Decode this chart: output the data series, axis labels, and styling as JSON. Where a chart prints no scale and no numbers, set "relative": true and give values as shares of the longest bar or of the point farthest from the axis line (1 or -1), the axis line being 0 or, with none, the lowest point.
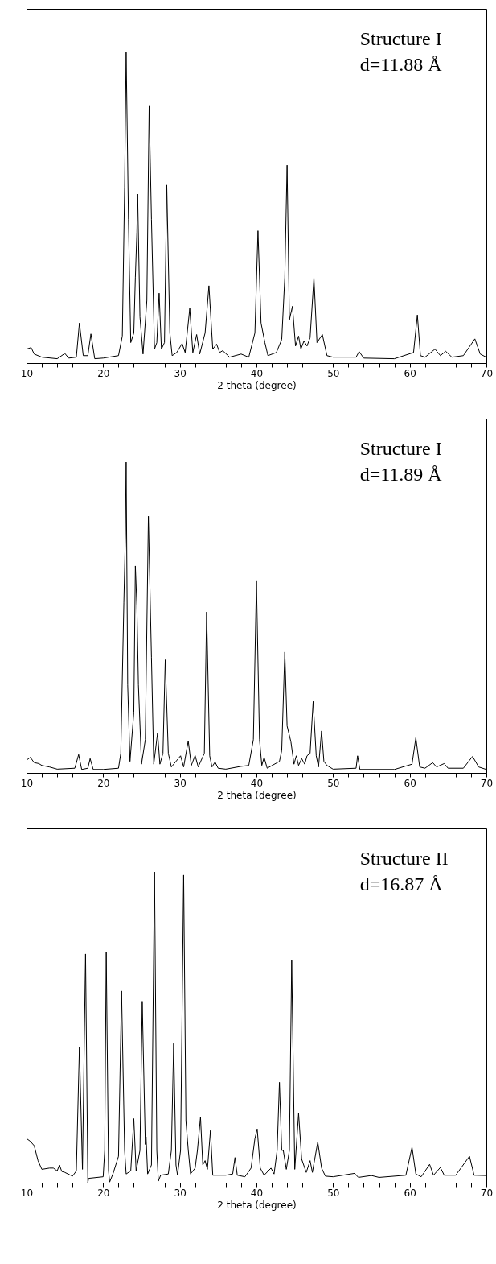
{
  "chart_data": [
    {
      "type": "line",
      "relative": true,
      "xlabel": "2 theta (degree)",
      "xlim": [
        10,
        70
      ],
      "xticks": [
        10,
        {
          "value": 12,
          "label": null
        },
        {
          "value": 14,
          "label": null
        },
        {
          "value": 16,
          "label": null
        },
        {
          "value": 18,
          "label": null
        },
        20,
        {
          "value": 22,
          "label": null
        },
        {
          "value": 24,
          "label": null
        },
        {
          "value": 26,
          "label": null
        },
        {
          "value": 28,
          "label": null
        },
        30,
        {
          "value": 32,
          "label": null
        },
        {
          "value": 34,
          "label": null
        },
        {
          "value": 36,
          "label": null
        },
        {
          "value": 38,
          "label": null
        },
        40,
        {
          "value": 42,
          "label": null
        },
        {
          "value": 44,
          "label": null
        },
        {
          "value": 46,
          "label": null
        },
        {
          "value": 48,
          "label": null
        },
        50,
        {
          "value": 52,
          "label": null
        },
        {
          "value": 54,
          "label": null
        },
        {
          "value": 56,
          "label": null
        },
        {
          "value": 58,
          "label": null
        },
        60,
        {
          "value": 62,
          "label": null
        },
        {
          "value": 64,
          "label": null
        },
        {
          "value": 66,
          "label": null
        },
        {
          "value": 68,
          "label": null
        },
        70
      ],
      "annotations": [
        "Structure I",
        "d=11.88 Å"
      ],
      "series": [
        {
          "color": "#000000",
          "x": [
            10,
            10.6,
            11,
            12,
            14,
            15,
            15.5,
            16.5,
            16.9,
            17.4,
            18,
            18.4,
            18.9,
            20,
            22,
            22.5,
            22.8,
            23.0,
            23.3,
            23.6,
            24.0,
            24.2,
            24.4,
            24.5,
            24.8,
            25.2,
            25.7,
            26.0,
            26.3,
            26.7,
            27.0,
            27.3,
            27.6,
            28.0,
            28.3,
            28.7,
            29.0,
            29.6,
            30.3,
            30.7,
            31.3,
            31.7,
            32.2,
            32.6,
            33.3,
            33.8,
            34.3,
            34.8,
            35.2,
            35.6,
            36.5,
            38,
            39,
            39.8,
            40.2,
            40.6,
            41.1,
            41.5,
            42.6,
            43.3,
            43.7,
            44.0,
            44.3,
            44.7,
            45.1,
            45.5,
            45.8,
            46.2,
            46.6,
            47.0,
            47.5,
            47.9,
            48.6,
            49.2,
            50,
            53,
            53.4,
            54,
            58,
            60.5,
            61.0,
            61.4,
            62,
            63.3,
            64,
            64.7,
            65.5,
            67,
            68.5,
            69.2,
            70
          ],
          "values": [
            0.045,
            0.05,
            0.029,
            0.019,
            0.014,
            0.031,
            0.016,
            0.019,
            0.129,
            0.024,
            0.024,
            0.094,
            0.014,
            0.016,
            0.024,
            0.087,
            0.567,
            1,
            0.463,
            0.066,
            0.097,
            0.275,
            0.421,
            0.544,
            0.149,
            0.029,
            0.202,
            0.827,
            0.463,
            0.045,
            0.066,
            0.225,
            0.045,
            0.066,
            0.573,
            0.097,
            0.024,
            0.034,
            0.063,
            0.034,
            0.176,
            0.034,
            0.092,
            0.029,
            0.097,
            0.249,
            0.045,
            0.061,
            0.034,
            0.04,
            0.019,
            0.029,
            0.019,
            0.097,
            0.426,
            0.129,
            0.066,
            0.024,
            0.034,
            0.076,
            0.275,
            0.637,
            0.139,
            0.183,
            0.055,
            0.087,
            0.045,
            0.071,
            0.055,
            0.082,
            0.275,
            0.066,
            0.092,
            0.024,
            0.019,
            0.019,
            0.037,
            0.016,
            0.014,
            0.034,
            0.155,
            0.024,
            0.019,
            0.045,
            0.024,
            0.038,
            0.019,
            0.024,
            0.078,
            0.029,
            0.019
          ]
        }
      ]
    },
    {
      "type": "line",
      "relative": true,
      "xlabel": "2 theta (degree)",
      "xlim": [
        10,
        70
      ],
      "xticks": [
        10,
        {
          "value": 12,
          "label": null
        },
        {
          "value": 14,
          "label": null
        },
        {
          "value": 16,
          "label": null
        },
        {
          "value": 18,
          "label": null
        },
        20,
        {
          "value": 22,
          "label": null
        },
        {
          "value": 24,
          "label": null
        },
        {
          "value": 26,
          "label": null
        },
        {
          "value": 28,
          "label": null
        },
        30,
        {
          "value": 32,
          "label": null
        },
        {
          "value": 34,
          "label": null
        },
        {
          "value": 36,
          "label": null
        },
        {
          "value": 38,
          "label": null
        },
        40,
        {
          "value": 42,
          "label": null
        },
        {
          "value": 44,
          "label": null
        },
        {
          "value": 46,
          "label": null
        },
        {
          "value": 48,
          "label": null
        },
        50,
        {
          "value": 52,
          "label": null
        },
        {
          "value": 54,
          "label": null
        },
        {
          "value": 56,
          "label": null
        },
        {
          "value": 58,
          "label": null
        },
        60,
        {
          "value": 62,
          "label": null
        },
        {
          "value": 64,
          "label": null
        },
        {
          "value": 66,
          "label": null
        },
        {
          "value": 68,
          "label": null
        },
        70
      ],
      "annotations": [
        "Structure I",
        "d=11.89 Å"
      ],
      "series": [
        {
          "color": "#000000",
          "x": [
            10,
            10.5,
            11,
            11.6,
            12,
            13,
            14,
            16.3,
            16.8,
            17.2,
            18.0,
            18.3,
            18.7,
            20,
            22,
            22.3,
            22.7,
            22.9,
            23.0,
            23.2,
            23.5,
            24.0,
            24.2,
            24.4,
            24.6,
            25.0,
            25.5,
            25.9,
            26.3,
            26.6,
            27.1,
            27.4,
            27.8,
            28.1,
            28.5,
            28.9,
            30.1,
            30.5,
            31.1,
            31.5,
            32.0,
            32.4,
            33.2,
            33.5,
            33.9,
            34.2,
            34.6,
            35,
            36,
            38,
            39,
            39.6,
            40.0,
            40.4,
            40.7,
            41.0,
            41.4,
            43.0,
            43.3,
            43.7,
            44.0,
            44.5,
            44.9,
            45.2,
            45.5,
            45.9,
            46.3,
            46.6,
            47.0,
            47.4,
            47.8,
            48.1,
            48.5,
            48.8,
            49.2,
            50,
            53,
            53.2,
            53.5,
            58,
            60.3,
            60.8,
            61.3,
            62,
            63,
            63.5,
            64.5,
            65,
            67,
            68.2,
            69,
            70
          ],
          "values": [
            0.041,
            0.05,
            0.033,
            0.03,
            0.024,
            0.019,
            0.012,
            0.015,
            0.059,
            0.011,
            0.015,
            0.046,
            0.011,
            0.011,
            0.015,
            0.063,
            0.547,
            0.767,
            1,
            0.283,
            0.037,
            0.195,
            0.666,
            0.538,
            0.283,
            0.028,
            0.107,
            0.826,
            0.371,
            0.028,
            0.129,
            0.028,
            0.063,
            0.364,
            0.063,
            0.019,
            0.055,
            0.019,
            0.103,
            0.024,
            0.056,
            0.019,
            0.063,
            0.518,
            0.055,
            0.019,
            0.035,
            0.015,
            0.012,
            0.021,
            0.024,
            0.107,
            0.617,
            0.107,
            0.024,
            0.05,
            0.015,
            0.037,
            0.072,
            0.389,
            0.151,
            0.1,
            0.028,
            0.055,
            0.024,
            0.046,
            0.028,
            0.055,
            0.063,
            0.23,
            0.055,
            0.019,
            0.135,
            0.037,
            0.024,
            0.012,
            0.015,
            0.055,
            0.011,
            0.011,
            0.028,
            0.113,
            0.019,
            0.015,
            0.033,
            0.019,
            0.03,
            0.015,
            0.015,
            0.053,
            0.019,
            0.011
          ]
        }
      ]
    },
    {
      "type": "line",
      "relative": true,
      "xlabel": "2 theta (degree)",
      "xlim": [
        10,
        70
      ],
      "xticks": [
        10,
        {
          "value": 12,
          "label": null
        },
        {
          "value": 14,
          "label": null
        },
        {
          "value": 16,
          "label": null
        },
        {
          "value": 18,
          "label": null
        },
        20,
        {
          "value": 22,
          "label": null
        },
        {
          "value": 24,
          "label": null
        },
        {
          "value": 26,
          "label": null
        },
        {
          "value": 28,
          "label": null
        },
        30,
        {
          "value": 32,
          "label": null
        },
        {
          "value": 34,
          "label": null
        },
        {
          "value": 36,
          "label": null
        },
        {
          "value": 38,
          "label": null
        },
        40,
        {
          "value": 42,
          "label": null
        },
        {
          "value": 44,
          "label": null
        },
        {
          "value": 46,
          "label": null
        },
        {
          "value": 48,
          "label": null
        },
        50,
        {
          "value": 52,
          "label": null
        },
        {
          "value": 54,
          "label": null
        },
        {
          "value": 56,
          "label": null
        },
        {
          "value": 58,
          "label": null
        },
        60,
        {
          "value": 62,
          "label": null
        },
        {
          "value": 64,
          "label": null
        },
        {
          "value": 66,
          "label": null
        },
        {
          "value": 68,
          "label": null
        },
        70
      ],
      "annotations": [
        "Structure II",
        "d=16.87 Å"
      ],
      "series": [
        {
          "color": "#000000",
          "x": [
            10,
            10.5,
            11,
            11.5,
            12,
            13,
            13.5,
            14,
            14.3,
            14.6,
            15,
            16,
            16.5,
            16.9,
            17.3,
            17.7,
            18.0,
            18.1,
            20,
            20.2,
            20.4,
            20.7,
            20.85,
            21.3,
            22.0,
            22.4,
            22.8,
            23.0,
            23.6,
            24.0,
            24.3,
            24.8,
            25.1,
            25.5,
            25.6,
            25.8,
            26.3,
            26.7,
            27.0,
            27.2,
            27.5,
            28.5,
            28.9,
            29.2,
            29.5,
            29.7,
            30.1,
            30.5,
            30.8,
            31.1,
            31.4,
            32.0,
            32.3,
            32.7,
            33.0,
            33.3,
            33.6,
            34.0,
            34.3,
            36,
            36.9,
            37.2,
            37.5,
            38.5,
            39.3,
            39.8,
            40.1,
            40.5,
            41.0,
            41.9,
            42.3,
            42.7,
            43.0,
            43.3,
            43.5,
            43.9,
            44.3,
            44.6,
            45.0,
            45.5,
            45.9,
            46.5,
            47.0,
            47.3,
            48.0,
            48.5,
            49.0,
            50,
            52.8,
            53.3,
            55,
            56,
            59.5,
            60.3,
            60.8,
            61.5,
            62.6,
            63.1,
            64.0,
            64.5,
            66,
            67.8,
            68.4,
            70
          ],
          "values": [
            0.142,
            0.133,
            0.119,
            0.071,
            0.043,
            0.047,
            0.047,
            0.038,
            0.057,
            0.036,
            0.033,
            0.021,
            0.038,
            0.437,
            0.043,
            0.736,
            0,
            0.014,
            0.019,
            0.104,
            0.743,
            0.038,
            0.002,
            0.03,
            0.085,
            0.617,
            0.104,
            0.028,
            0.038,
            0.206,
            0.038,
            0.104,
            0.584,
            0.123,
            0.147,
            0.028,
            0.057,
            1,
            0.104,
            0.005,
            0.024,
            0.028,
            0.104,
            0.448,
            0.057,
            0.024,
            0.104,
            0.99,
            0.199,
            0.106,
            0.028,
            0.047,
            0.104,
            0.211,
            0.057,
            0.071,
            0.043,
            0.168,
            0.024,
            0.024,
            0.028,
            0.081,
            0.024,
            0.019,
            0.047,
            0.142,
            0.173,
            0.047,
            0.024,
            0.047,
            0.028,
            0.104,
            0.323,
            0.104,
            0.104,
            0.043,
            0.104,
            0.715,
            0.043,
            0.223,
            0.076,
            0.033,
            0.071,
            0.033,
            0.131,
            0.047,
            0.021,
            0.019,
            0.03,
            0.017,
            0.023,
            0.017,
            0.024,
            0.114,
            0.028,
            0.019,
            0.059,
            0.024,
            0.049,
            0.024,
            0.024,
            0.085,
            0.024,
            0.023
          ]
        }
      ]
    }
  ]
}
